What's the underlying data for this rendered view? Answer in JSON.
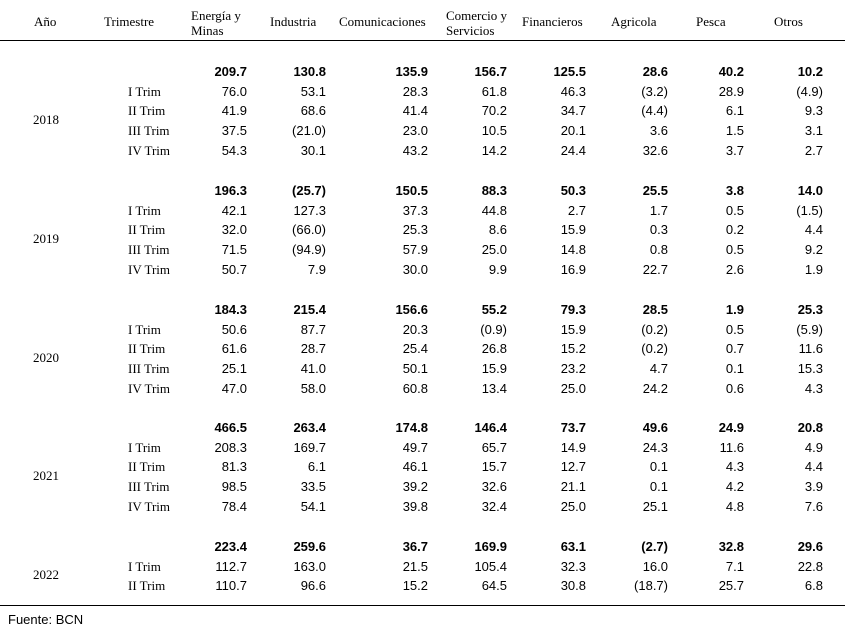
{
  "headers": {
    "anio": "Año",
    "trimestre": "Trimestre",
    "energia_1": "Energía y",
    "energia_2": "Minas",
    "industria": "Industria",
    "comunicaciones": "Comunicaciones",
    "comercio_1": "Comercio y",
    "comercio_2": "Servicios",
    "financieros": "Financieros",
    "agricola": "Agricola",
    "pesca": "Pesca",
    "otros": "Otros"
  },
  "years": [
    {
      "year": "2018",
      "total": [
        "209.7",
        "130.8",
        "135.9",
        "156.7",
        "125.5",
        "28.6",
        "40.2",
        "10.2"
      ],
      "quarters": [
        {
          "label": "I Trim",
          "values": [
            "76.0",
            "53.1",
            "28.3",
            "61.8",
            "46.3",
            "(3.2)",
            "28.9",
            "(4.9)"
          ]
        },
        {
          "label": "II Trim",
          "values": [
            "41.9",
            "68.6",
            "41.4",
            "70.2",
            "34.7",
            "(4.4)",
            "6.1",
            "9.3"
          ]
        },
        {
          "label": "III Trim",
          "values": [
            "37.5",
            "(21.0)",
            "23.0",
            "10.5",
            "20.1",
            "3.6",
            "1.5",
            "3.1"
          ]
        },
        {
          "label": "IV Trim",
          "values": [
            "54.3",
            "30.1",
            "43.2",
            "14.2",
            "24.4",
            "32.6",
            "3.7",
            "2.7"
          ]
        }
      ]
    },
    {
      "year": "2019",
      "total": [
        "196.3",
        "(25.7)",
        "150.5",
        "88.3",
        "50.3",
        "25.5",
        "3.8",
        "14.0"
      ],
      "quarters": [
        {
          "label": "I Trim",
          "values": [
            "42.1",
            "127.3",
            "37.3",
            "44.8",
            "2.7",
            "1.7",
            "0.5",
            "(1.5)"
          ]
        },
        {
          "label": "II Trim",
          "values": [
            "32.0",
            "(66.0)",
            "25.3",
            "8.6",
            "15.9",
            "0.3",
            "0.2",
            "4.4"
          ]
        },
        {
          "label": "III Trim",
          "values": [
            "71.5",
            "(94.9)",
            "57.9",
            "25.0",
            "14.8",
            "0.8",
            "0.5",
            "9.2"
          ]
        },
        {
          "label": "IV Trim",
          "values": [
            "50.7",
            "7.9",
            "30.0",
            "9.9",
            "16.9",
            "22.7",
            "2.6",
            "1.9"
          ]
        }
      ]
    },
    {
      "year": "2020",
      "total": [
        "184.3",
        "215.4",
        "156.6",
        "55.2",
        "79.3",
        "28.5",
        "1.9",
        "25.3"
      ],
      "quarters": [
        {
          "label": "I Trim",
          "values": [
            "50.6",
            "87.7",
            "20.3",
            "(0.9)",
            "15.9",
            "(0.2)",
            "0.5",
            "(5.9)"
          ]
        },
        {
          "label": "II Trim",
          "values": [
            "61.6",
            "28.7",
            "25.4",
            "26.8",
            "15.2",
            "(0.2)",
            "0.7",
            "11.6"
          ]
        },
        {
          "label": "III Trim",
          "values": [
            "25.1",
            "41.0",
            "50.1",
            "15.9",
            "23.2",
            "4.7",
            "0.1",
            "15.3"
          ]
        },
        {
          "label": "IV Trim",
          "values": [
            "47.0",
            "58.0",
            "60.8",
            "13.4",
            "25.0",
            "24.2",
            "0.6",
            "4.3"
          ]
        }
      ]
    },
    {
      "year": "2021",
      "total": [
        "466.5",
        "263.4",
        "174.8",
        "146.4",
        "73.7",
        "49.6",
        "24.9",
        "20.8"
      ],
      "quarters": [
        {
          "label": "I Trim",
          "values": [
            "208.3",
            "169.7",
            "49.7",
            "65.7",
            "14.9",
            "24.3",
            "11.6",
            "4.9"
          ]
        },
        {
          "label": "II Trim",
          "values": [
            "81.3",
            "6.1",
            "46.1",
            "15.7",
            "12.7",
            "0.1",
            "4.3",
            "4.4"
          ]
        },
        {
          "label": "III Trim",
          "values": [
            "98.5",
            "33.5",
            "39.2",
            "32.6",
            "21.1",
            "0.1",
            "4.2",
            "3.9"
          ]
        },
        {
          "label": "IV Trim",
          "values": [
            "78.4",
            "54.1",
            "39.8",
            "32.4",
            "25.0",
            "25.1",
            "4.8",
            "7.6"
          ]
        }
      ]
    },
    {
      "year": "2022",
      "total": [
        "223.4",
        "259.6",
        "36.7",
        "169.9",
        "63.1",
        "(2.7)",
        "32.8",
        "29.6"
      ],
      "quarters": [
        {
          "label": "I Trim",
          "values": [
            "112.7",
            "163.0",
            "21.5",
            "105.4",
            "32.3",
            "16.0",
            "7.1",
            "22.8"
          ]
        },
        {
          "label": "II Trim",
          "values": [
            "110.7",
            "96.6",
            "15.2",
            "64.5",
            "30.8",
            "(18.7)",
            "25.7",
            "6.8"
          ]
        }
      ]
    }
  ],
  "source": "Fuente: BCN"
}
